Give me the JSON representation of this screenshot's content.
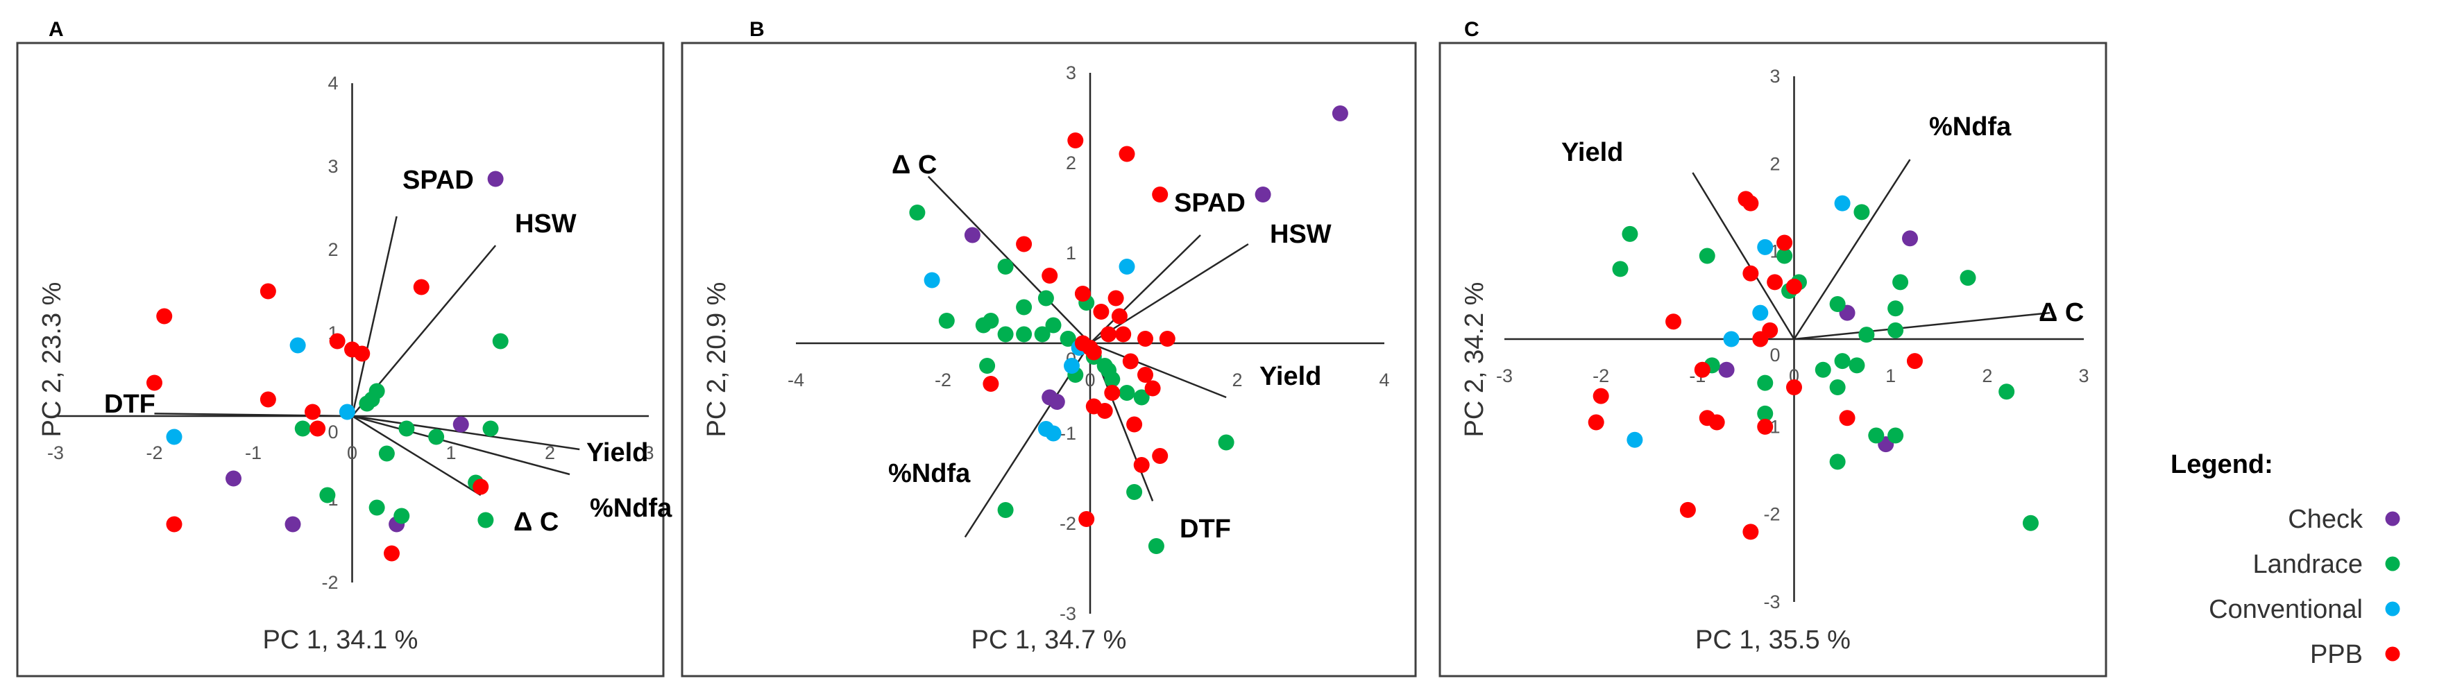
{
  "colors": {
    "Check": "#7030A0",
    "Landrace": "#00B050",
    "Conventional": "#00B0F0",
    "PPB": "#FF0000"
  },
  "legend": {
    "title": "Legend:",
    "items": [
      {
        "label": "Check",
        "group": "Check"
      },
      {
        "label": "Landrace",
        "group": "Landrace"
      },
      {
        "label": "Conventional",
        "group": "Conventional"
      },
      {
        "label": "PPB",
        "group": "PPB"
      }
    ]
  },
  "chart_data": [
    {
      "panel": "A",
      "type": "scatter",
      "xlabel": "PC 1, 34.1 %",
      "ylabel": "PC 2, 23.3 %",
      "xlim": [
        -3,
        3
      ],
      "ylim": [
        -2,
        4
      ],
      "xticks": [
        "-3",
        "-2",
        "-1",
        "0",
        "1",
        "2",
        "3"
      ],
      "yticks": [
        "-2",
        "-1",
        "0",
        "1",
        "2",
        "3",
        "4"
      ],
      "vectors": [
        {
          "name": "SPAD",
          "x": 0.45,
          "y": 2.4
        },
        {
          "name": "HSW",
          "x": 1.45,
          "y": 2.05
        },
        {
          "name": "DTF",
          "x": -2.0,
          "y": 0.03
        },
        {
          "name": "Yield",
          "x": 2.3,
          "y": -0.4
        },
        {
          "name": "%Ndfa",
          "x": 2.2,
          "y": -0.7
        },
        {
          "name": "Δ C",
          "x": 1.3,
          "y": -0.95
        }
      ],
      "series": [
        {
          "name": "Check",
          "points": [
            [
              1.45,
              2.85
            ],
            [
              1.1,
              -0.1
            ],
            [
              -1.2,
              -0.75
            ],
            [
              -0.6,
              -1.3
            ],
            [
              0.45,
              -1.3
            ]
          ]
        },
        {
          "name": "Landrace",
          "points": [
            [
              1.5,
              0.9
            ],
            [
              0.25,
              0.3
            ],
            [
              0.15,
              0.15
            ],
            [
              0.2,
              0.2
            ],
            [
              0.55,
              -0.15
            ],
            [
              0.85,
              -0.25
            ],
            [
              1.4,
              -0.15
            ],
            [
              0.35,
              -0.45
            ],
            [
              1.25,
              -0.8
            ],
            [
              -0.25,
              -0.95
            ],
            [
              0.25,
              -1.1
            ],
            [
              0.5,
              -1.2
            ],
            [
              1.35,
              -1.25
            ],
            [
              -0.5,
              -0.15
            ]
          ]
        },
        {
          "name": "Conventional",
          "points": [
            [
              -0.55,
              0.85
            ],
            [
              -1.8,
              -0.25
            ],
            [
              -0.05,
              0.05
            ]
          ]
        },
        {
          "name": "PPB",
          "points": [
            [
              -1.9,
              1.2
            ],
            [
              -2.0,
              0.4
            ],
            [
              -0.85,
              1.5
            ],
            [
              0.7,
              1.55
            ],
            [
              -0.15,
              0.9
            ],
            [
              0.0,
              0.8
            ],
            [
              0.1,
              0.75
            ],
            [
              -0.85,
              0.2
            ],
            [
              -0.4,
              0.05
            ],
            [
              -0.35,
              -0.15
            ],
            [
              1.3,
              -0.85
            ],
            [
              -1.8,
              -1.3
            ],
            [
              0.4,
              -1.65
            ]
          ]
        }
      ]
    },
    {
      "panel": "B",
      "type": "scatter",
      "xlabel": "PC 1, 34.7 %",
      "ylabel": "PC 2, 20.9 %",
      "xlim": [
        -4,
        4
      ],
      "ylim": [
        -3,
        3
      ],
      "xticks": [
        "-4",
        "-2",
        "0",
        "2",
        "4"
      ],
      "yticks": [
        "-3",
        "-2",
        "-1",
        "0",
        "1",
        "2",
        "3"
      ],
      "vectors": [
        {
          "name": "Δ C",
          "x": -2.2,
          "y": 1.85
        },
        {
          "name": "SPAD",
          "x": 1.5,
          "y": 1.2
        },
        {
          "name": "HSW",
          "x": 2.15,
          "y": 1.1
        },
        {
          "name": "Yield",
          "x": 1.85,
          "y": -0.6
        },
        {
          "name": "%Ndfa",
          "x": -1.7,
          "y": -2.15
        },
        {
          "name": "DTF",
          "x": 0.85,
          "y": -1.75
        }
      ],
      "series": [
        {
          "name": "Check",
          "points": [
            [
              3.4,
              2.55
            ],
            [
              2.35,
              1.65
            ],
            [
              -1.6,
              1.2
            ],
            [
              -0.55,
              -0.6
            ],
            [
              -0.45,
              -0.65
            ]
          ]
        },
        {
          "name": "Landrace",
          "points": [
            [
              -2.35,
              1.45
            ],
            [
              -1.15,
              0.85
            ],
            [
              -0.6,
              0.5
            ],
            [
              -0.05,
              0.45
            ],
            [
              -0.9,
              0.4
            ],
            [
              -1.95,
              0.25
            ],
            [
              -1.45,
              0.2
            ],
            [
              -1.35,
              0.25
            ],
            [
              -0.5,
              0.2
            ],
            [
              -0.3,
              0.05
            ],
            [
              -0.65,
              0.1
            ],
            [
              -0.9,
              0.1
            ],
            [
              -1.15,
              0.1
            ],
            [
              -0.3,
              0.05
            ],
            [
              0.25,
              -0.3
            ],
            [
              -0.2,
              -0.35
            ],
            [
              0.3,
              -0.4
            ],
            [
              0.5,
              -0.55
            ],
            [
              0.7,
              -0.6
            ],
            [
              0.05,
              -0.15
            ],
            [
              -1.4,
              -0.25
            ],
            [
              1.85,
              -1.1
            ],
            [
              -1.15,
              -1.85
            ],
            [
              0.9,
              -2.25
            ],
            [
              0.6,
              -1.65
            ],
            [
              0.2,
              -0.25
            ]
          ]
        },
        {
          "name": "Conventional",
          "points": [
            [
              0.5,
              0.85
            ],
            [
              -2.15,
              0.7
            ],
            [
              -0.15,
              -0.05
            ],
            [
              -0.6,
              -0.95
            ],
            [
              -0.5,
              -1.0
            ],
            [
              -0.25,
              -0.25
            ]
          ]
        },
        {
          "name": "PPB",
          "points": [
            [
              -0.2,
              2.25
            ],
            [
              0.5,
              2.1
            ],
            [
              0.95,
              1.65
            ],
            [
              -0.9,
              1.1
            ],
            [
              -1.35,
              -0.45
            ],
            [
              -0.55,
              0.75
            ],
            [
              -0.1,
              0.55
            ],
            [
              0.35,
              0.5
            ],
            [
              0.4,
              0.3
            ],
            [
              0.15,
              0.35
            ],
            [
              0.25,
              0.1
            ],
            [
              0.45,
              0.1
            ],
            [
              0.75,
              0.05
            ],
            [
              1.05,
              0.05
            ],
            [
              0.55,
              -0.2
            ],
            [
              0.75,
              -0.35
            ],
            [
              0.3,
              -0.55
            ],
            [
              0.05,
              -0.7
            ],
            [
              0.2,
              -0.75
            ],
            [
              0.6,
              -0.9
            ],
            [
              0.95,
              -1.25
            ],
            [
              0.7,
              -1.35
            ],
            [
              0.05,
              -0.1
            ],
            [
              -0.1,
              0.0
            ],
            [
              0.0,
              -0.05
            ],
            [
              -0.05,
              -1.95
            ],
            [
              0.85,
              -0.5
            ]
          ]
        }
      ]
    },
    {
      "panel": "C",
      "type": "scatter",
      "xlabel": "PC 1, 35.5 %",
      "ylabel": "PC 2, 34.2 %",
      "xlim": [
        -3,
        3
      ],
      "ylim": [
        -3,
        3
      ],
      "xticks": [
        "-3",
        "-2",
        "-1",
        "0",
        "1",
        "2",
        "3"
      ],
      "yticks": [
        "-3",
        "-2",
        "-1",
        "0",
        "1",
        "2",
        "3"
      ],
      "vectors": [
        {
          "name": "Yield",
          "x": -1.05,
          "y": 1.9
        },
        {
          "name": "%Ndfa",
          "x": 1.2,
          "y": 2.05
        },
        {
          "name": "Δ C",
          "x": 2.65,
          "y": 0.3
        }
      ],
      "series": [
        {
          "name": "Check",
          "points": [
            [
              1.2,
              1.15
            ],
            [
              -0.7,
              -0.35
            ],
            [
              0.55,
              0.3
            ],
            [
              0.95,
              -1.2
            ]
          ]
        },
        {
          "name": "Landrace",
          "points": [
            [
              0.7,
              1.45
            ],
            [
              -1.7,
              1.2
            ],
            [
              -0.9,
              0.95
            ],
            [
              -0.1,
              0.95
            ],
            [
              -1.8,
              0.8
            ],
            [
              0.05,
              0.65
            ],
            [
              -0.05,
              0.55
            ],
            [
              1.1,
              0.65
            ],
            [
              1.8,
              0.7
            ],
            [
              0.45,
              0.4
            ],
            [
              1.05,
              0.35
            ],
            [
              0.75,
              0.05
            ],
            [
              1.05,
              0.1
            ],
            [
              0.5,
              -0.25
            ],
            [
              0.65,
              -0.3
            ],
            [
              0.3,
              -0.35
            ],
            [
              -0.3,
              -0.5
            ],
            [
              0.45,
              -0.55
            ],
            [
              -0.3,
              -0.85
            ],
            [
              0.85,
              -1.1
            ],
            [
              1.05,
              -1.1
            ],
            [
              2.2,
              -0.6
            ],
            [
              0.45,
              -1.4
            ],
            [
              2.45,
              -2.1
            ],
            [
              -0.85,
              -0.3
            ]
          ]
        },
        {
          "name": "Conventional",
          "points": [
            [
              0.5,
              1.55
            ],
            [
              -0.3,
              1.05
            ],
            [
              -0.35,
              0.3
            ],
            [
              -0.65,
              0.0
            ],
            [
              -1.65,
              -1.15
            ]
          ]
        },
        {
          "name": "PPB",
          "points": [
            [
              -0.45,
              1.55
            ],
            [
              -0.5,
              1.6
            ],
            [
              -0.1,
              1.1
            ],
            [
              -0.45,
              0.75
            ],
            [
              -0.2,
              0.65
            ],
            [
              0.0,
              0.6
            ],
            [
              -1.25,
              0.2
            ],
            [
              -0.25,
              0.1
            ],
            [
              -0.35,
              0.0
            ],
            [
              -2.0,
              -0.65
            ],
            [
              -0.95,
              -0.35
            ],
            [
              0.0,
              -0.55
            ],
            [
              1.25,
              -0.25
            ],
            [
              -0.9,
              -0.9
            ],
            [
              -0.8,
              -0.95
            ],
            [
              0.55,
              -0.9
            ],
            [
              -2.05,
              -0.95
            ],
            [
              -1.1,
              -1.95
            ],
            [
              -0.45,
              -2.2
            ],
            [
              -0.3,
              -1.0
            ]
          ]
        }
      ]
    }
  ]
}
